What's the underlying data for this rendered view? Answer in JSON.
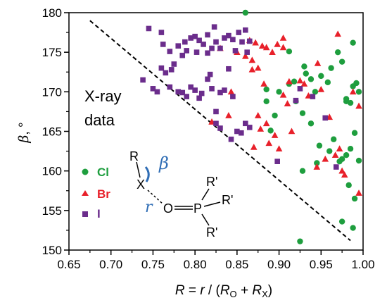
{
  "chart_data": {
    "type": "scatter",
    "title": "",
    "xlabel": "R = r / (RO + RX)",
    "ylabel": "β, °",
    "xlim": [
      0.65,
      1.0
    ],
    "ylim": [
      150,
      180
    ],
    "x_ticks": [
      "0.65",
      "0.70",
      "0.75",
      "0.80",
      "0.85",
      "0.90",
      "0.95",
      "1.00"
    ],
    "y_ticks": [
      "150",
      "155",
      "160",
      "165",
      "170",
      "175",
      "180"
    ],
    "grid": false,
    "legend_position": "left",
    "annotation": {
      "line1": "X-ray",
      "line2": "data"
    },
    "diagonal_line": {
      "x": [
        0.675,
        0.985
      ],
      "y": [
        179.0,
        151.2
      ],
      "style": "dashed"
    },
    "molecule": {
      "atom_R": "R",
      "atom_X": "X",
      "atom_O": "O",
      "atom_P": "P",
      "sub1": "R'",
      "sub2": "R'",
      "sub3": "R'",
      "angle": "β",
      "distance": "r"
    },
    "series": [
      {
        "name": "Cl",
        "color": "#1e9e3e",
        "marker": "circle",
        "points": [
          [
            0.86,
            180.0
          ],
          [
            0.925,
            151.1
          ],
          [
            0.975,
            153.6
          ],
          [
            0.988,
            152.8
          ],
          [
            0.983,
            158.2
          ],
          [
            0.99,
            156.5
          ],
          [
            0.928,
            160.0
          ],
          [
            0.945,
            161.0
          ],
          [
            0.96,
            162.5
          ],
          [
            0.965,
            164.0
          ],
          [
            0.972,
            161.2
          ],
          [
            0.975,
            161.5
          ],
          [
            0.98,
            162.0
          ],
          [
            0.985,
            162.8
          ],
          [
            0.99,
            164.8
          ],
          [
            0.995,
            161.3
          ],
          [
            0.948,
            163.2
          ],
          [
            0.938,
            166.0
          ],
          [
            0.928,
            167.3
          ],
          [
            0.92,
            168.8
          ],
          [
            0.89,
            165.1
          ],
          [
            0.895,
            167.0
          ],
          [
            0.885,
            168.8
          ],
          [
            0.885,
            170.3
          ],
          [
            0.9,
            170.0
          ],
          [
            0.912,
            171.0
          ],
          [
            0.918,
            171.3
          ],
          [
            0.932,
            172.3
          ],
          [
            0.938,
            171.6
          ],
          [
            0.943,
            170.0
          ],
          [
            0.95,
            172.0
          ],
          [
            0.958,
            171.2
          ],
          [
            0.962,
            173.0
          ],
          [
            0.97,
            175.0
          ],
          [
            0.975,
            173.8
          ],
          [
            0.98,
            168.8
          ],
          [
            0.985,
            168.6
          ],
          [
            0.988,
            170.7
          ],
          [
            0.992,
            171.1
          ],
          [
            0.995,
            170.0
          ],
          [
            0.98,
            169.1
          ],
          [
            0.988,
            176.2
          ],
          [
            0.912,
            175.1
          ],
          [
            0.93,
            173.2
          ]
        ]
      },
      {
        "name": "Br",
        "color": "#e8202a",
        "marker": "triangle",
        "points": [
          [
            0.82,
            166.2
          ],
          [
            0.84,
            167.0
          ],
          [
            0.83,
            175.5
          ],
          [
            0.843,
            170.0
          ],
          [
            0.85,
            175.0
          ],
          [
            0.86,
            174.5
          ],
          [
            0.868,
            174.0
          ],
          [
            0.875,
            173.0
          ],
          [
            0.865,
            176.5
          ],
          [
            0.872,
            176.2
          ],
          [
            0.88,
            175.8
          ],
          [
            0.885,
            175.6
          ],
          [
            0.892,
            175.0
          ],
          [
            0.898,
            176.0
          ],
          [
            0.905,
            176.8
          ],
          [
            0.912,
            171.3
          ],
          [
            0.925,
            171.4
          ],
          [
            0.93,
            171.0
          ],
          [
            0.935,
            169.5
          ],
          [
            0.946,
            173.6
          ],
          [
            0.95,
            170.3
          ],
          [
            0.96,
            166.8
          ],
          [
            0.967,
            162.0
          ],
          [
            0.972,
            162.8
          ],
          [
            0.975,
            160.0
          ],
          [
            0.97,
            177.3
          ],
          [
            0.995,
            168.2
          ],
          [
            0.995,
            157.2
          ],
          [
            0.955,
            161.5
          ],
          [
            0.945,
            160.5
          ],
          [
            0.9,
            162.8
          ],
          [
            0.915,
            165.0
          ],
          [
            0.91,
            168.5
          ],
          [
            0.905,
            169.6
          ],
          [
            0.895,
            164.5
          ],
          [
            0.885,
            166.0
          ],
          [
            0.875,
            167.0
          ],
          [
            0.878,
            165.3
          ],
          [
            0.882,
            171.0
          ],
          [
            0.888,
            163.5
          ],
          [
            0.87,
            163.0
          ],
          [
            0.868,
            172.8
          ],
          [
            0.905,
            175.6
          ],
          [
            0.978,
            159.5
          ],
          [
            0.988,
            170.0
          ]
        ]
      },
      {
        "name": "I",
        "color": "#6b2d8c",
        "marker": "square",
        "points": [
          [
            0.738,
            171.5
          ],
          [
            0.745,
            178.0
          ],
          [
            0.76,
            177.5
          ],
          [
            0.762,
            176.0
          ],
          [
            0.77,
            175.1
          ],
          [
            0.772,
            172.8
          ],
          [
            0.775,
            173.5
          ],
          [
            0.78,
            175.8
          ],
          [
            0.785,
            174.6
          ],
          [
            0.788,
            176.3
          ],
          [
            0.79,
            175.2
          ],
          [
            0.795,
            176.8
          ],
          [
            0.8,
            177.0
          ],
          [
            0.802,
            175.0
          ],
          [
            0.805,
            176.5
          ],
          [
            0.81,
            176.0
          ],
          [
            0.815,
            177.2
          ],
          [
            0.82,
            175.5
          ],
          [
            0.823,
            178.2
          ],
          [
            0.825,
            176.3
          ],
          [
            0.83,
            175.5
          ],
          [
            0.835,
            176.8
          ],
          [
            0.84,
            177.1
          ],
          [
            0.845,
            176.6
          ],
          [
            0.848,
            175.2
          ],
          [
            0.852,
            177.5
          ],
          [
            0.856,
            176.3
          ],
          [
            0.86,
            177.8
          ],
          [
            0.862,
            175.0
          ],
          [
            0.865,
            176.4
          ],
          [
            0.75,
            170.4
          ],
          [
            0.755,
            170.0
          ],
          [
            0.76,
            173.0
          ],
          [
            0.765,
            172.4
          ],
          [
            0.77,
            170.6
          ],
          [
            0.78,
            170.0
          ],
          [
            0.785,
            169.9
          ],
          [
            0.79,
            169.4
          ],
          [
            0.795,
            170.6
          ],
          [
            0.8,
            170.2
          ],
          [
            0.805,
            169.2
          ],
          [
            0.808,
            169.8
          ],
          [
            0.815,
            171.6
          ],
          [
            0.818,
            172.2
          ],
          [
            0.82,
            170.4
          ],
          [
            0.825,
            167.5
          ],
          [
            0.83,
            169.9
          ],
          [
            0.835,
            170.2
          ],
          [
            0.84,
            172.9
          ],
          [
            0.845,
            169.4
          ],
          [
            0.85,
            165.0
          ],
          [
            0.855,
            164.8
          ],
          [
            0.86,
            166.0
          ],
          [
            0.865,
            165.5
          ],
          [
            0.825,
            166.0
          ],
          [
            0.83,
            165.4
          ],
          [
            0.843,
            164.0
          ],
          [
            0.925,
            170.4
          ],
          [
            0.94,
            169.4
          ],
          [
            0.955,
            166.7
          ],
          [
            0.968,
            160.5
          ],
          [
            0.898,
            161.2
          ],
          [
            0.92,
            168.9
          ],
          [
            0.815,
            174.9
          ]
        ]
      }
    ]
  }
}
